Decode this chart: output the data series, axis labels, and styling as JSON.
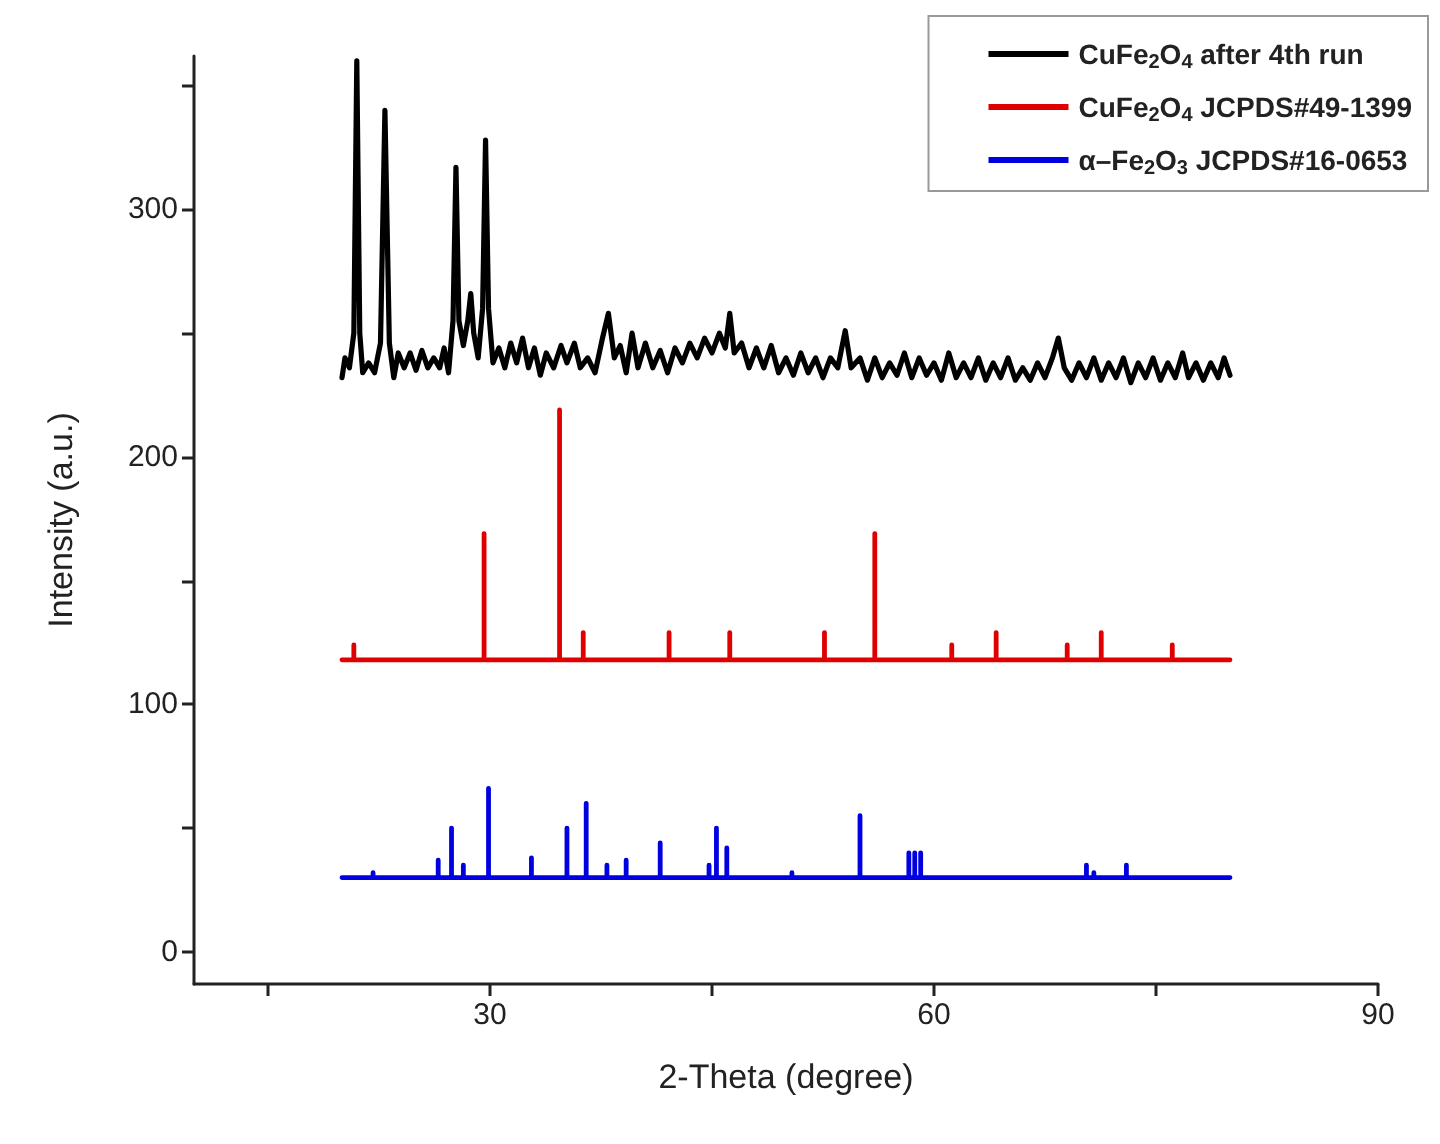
{
  "chart_data": {
    "type": "line",
    "xlabel": "2-Theta (degree)",
    "ylabel": "Intensity (a.u.)",
    "xlim": [
      10,
      90
    ],
    "xticks": [
      {
        "value": 15,
        "label": null
      },
      30,
      {
        "value": 45,
        "label": null
      },
      60,
      {
        "value": 75,
        "label": null
      },
      90
    ],
    "ylim": [
      -13,
      362
    ],
    "yticks": [
      0,
      {
        "value": 50,
        "label": null
      },
      100,
      {
        "value": 150,
        "label": null
      },
      200,
      {
        "value": 250,
        "label": null
      },
      300,
      {
        "value": 350,
        "label": null
      }
    ],
    "grid": false,
    "legend": "top right",
    "marker": "none",
    "line_style": "solid",
    "series": [
      {
        "name": "CuFe$_{2}$O$_{4}$ after 4th run",
        "color": "#000000",
        "x": [
          20.0,
          20.2,
          20.5,
          20.8,
          21.0,
          21.2,
          21.4,
          21.8,
          22.2,
          22.6,
          22.9,
          23.2,
          23.5,
          23.8,
          24.2,
          24.6,
          25.0,
          25.4,
          25.8,
          26.2,
          26.6,
          26.9,
          27.2,
          27.5,
          27.7,
          27.9,
          28.2,
          28.5,
          28.7,
          28.9,
          29.2,
          29.5,
          29.7,
          29.9,
          30.2,
          30.6,
          31.0,
          31.4,
          31.8,
          32.2,
          32.6,
          33.0,
          33.4,
          33.8,
          34.3,
          34.8,
          35.2,
          35.7,
          36.1,
          36.6,
          37.1,
          37.6,
          38.0,
          38.4,
          38.8,
          39.2,
          39.6,
          40.0,
          40.5,
          41.0,
          41.5,
          42.0,
          42.5,
          43.0,
          43.5,
          44.0,
          44.5,
          45.0,
          45.5,
          45.9,
          46.2,
          46.5,
          47.0,
          47.5,
          48.0,
          48.5,
          49.0,
          49.5,
          50.0,
          50.5,
          51.0,
          51.5,
          52.0,
          52.5,
          53.0,
          53.5,
          54.0,
          54.4,
          55.0,
          55.5,
          56.0,
          56.5,
          57.0,
          57.5,
          58.0,
          58.5,
          59.0,
          59.5,
          60.0,
          60.5,
          61.0,
          61.5,
          62.0,
          62.5,
          63.0,
          63.5,
          64.0,
          64.5,
          65.0,
          65.5,
          66.0,
          66.5,
          67.0,
          67.5,
          68.0,
          68.4,
          68.8,
          69.3,
          69.8,
          70.3,
          70.8,
          71.3,
          71.8,
          72.3,
          72.8,
          73.3,
          73.8,
          74.3,
          74.8,
          75.3,
          75.8,
          76.3,
          76.8,
          77.2,
          77.7,
          78.2,
          78.7,
          79.2,
          79.6,
          80.0
        ],
        "values": [
          232,
          240,
          236,
          250,
          360,
          250,
          234,
          238,
          234,
          246,
          340,
          246,
          232,
          242,
          236,
          242,
          235,
          243,
          236,
          240,
          236,
          244,
          234,
          255,
          317,
          255,
          245,
          255,
          266,
          250,
          240,
          260,
          328,
          260,
          238,
          244,
          236,
          246,
          238,
          248,
          236,
          244,
          233,
          242,
          236,
          245,
          238,
          246,
          236,
          240,
          234,
          248,
          258,
          240,
          245,
          234,
          250,
          236,
          246,
          236,
          243,
          234,
          244,
          238,
          246,
          240,
          248,
          242,
          250,
          244,
          258,
          242,
          246,
          236,
          244,
          236,
          245,
          234,
          240,
          233,
          242,
          234,
          240,
          232,
          240,
          236,
          251,
          236,
          240,
          231,
          240,
          232,
          238,
          233,
          242,
          232,
          240,
          233,
          238,
          231,
          242,
          232,
          238,
          232,
          240,
          231,
          238,
          232,
          240,
          231,
          236,
          231,
          238,
          232,
          240,
          248,
          236,
          231,
          238,
          232,
          240,
          231,
          238,
          232,
          240,
          230,
          238,
          232,
          240,
          231,
          238,
          232,
          242,
          232,
          238,
          231,
          238,
          232,
          240,
          233
        ]
      },
      {
        "name": "CuFe$_{2}$O$_{4}$ JCPDS#49-1399",
        "color": "#e00000",
        "x": [
          20,
          20.8,
          20.8,
          20.8,
          29.6,
          29.6,
          29.6,
          34.7,
          34.7,
          34.7,
          36.3,
          36.3,
          36.3,
          42.1,
          42.1,
          42.1,
          46.2,
          46.2,
          46.2,
          52.6,
          52.6,
          52.6,
          56.0,
          56.0,
          56.0,
          61.2,
          61.2,
          61.2,
          64.2,
          64.2,
          64.2,
          69.0,
          69.0,
          69.0,
          71.3,
          71.3,
          71.3,
          76.1,
          76.1,
          76.1,
          80
        ],
        "values": [
          118,
          118,
          124,
          118,
          118,
          169,
          118,
          118,
          219,
          118,
          118,
          129,
          118,
          118,
          129,
          118,
          118,
          129,
          118,
          118,
          129,
          118,
          118,
          169,
          118,
          118,
          124,
          118,
          118,
          129,
          118,
          118,
          124,
          118,
          118,
          129,
          118,
          118,
          124,
          118,
          118
        ]
      },
      {
        "name": "α–Fe$_{2}$O$_{3}$ JCPDS#16-0653",
        "color": "#0000e0",
        "x": [
          20,
          22.1,
          22.1,
          22.1,
          26.5,
          26.5,
          26.5,
          27.4,
          27.4,
          27.4,
          28.2,
          28.2,
          28.2,
          29.9,
          29.9,
          29.9,
          32.8,
          32.8,
          32.8,
          35.2,
          35.2,
          35.2,
          36.5,
          36.5,
          36.5,
          37.9,
          37.9,
          37.9,
          39.2,
          39.2,
          39.2,
          41.5,
          41.5,
          41.5,
          44.8,
          44.8,
          44.8,
          45.3,
          45.3,
          45.3,
          46.0,
          46.0,
          46.0,
          50.4,
          50.4,
          50.4,
          55.0,
          55.0,
          55.0,
          58.3,
          58.3,
          58.3,
          58.7,
          58.7,
          58.7,
          59.1,
          59.1,
          59.1,
          70.3,
          70.3,
          70.3,
          70.8,
          70.8,
          70.8,
          73.0,
          73.0,
          73.0,
          80
        ],
        "values": [
          30,
          30,
          32,
          30,
          30,
          37,
          30,
          30,
          50,
          30,
          30,
          35,
          30,
          30,
          66,
          30,
          30,
          38,
          30,
          30,
          50,
          30,
          30,
          60,
          30,
          30,
          35,
          30,
          30,
          37,
          30,
          30,
          44,
          30,
          30,
          35,
          30,
          30,
          50,
          30,
          30,
          42,
          30,
          30,
          32,
          30,
          30,
          55,
          30,
          30,
          40,
          30,
          30,
          40,
          30,
          30,
          40,
          30,
          30,
          35,
          30,
          30,
          32,
          30,
          30,
          35,
          30,
          30
        ]
      }
    ]
  }
}
